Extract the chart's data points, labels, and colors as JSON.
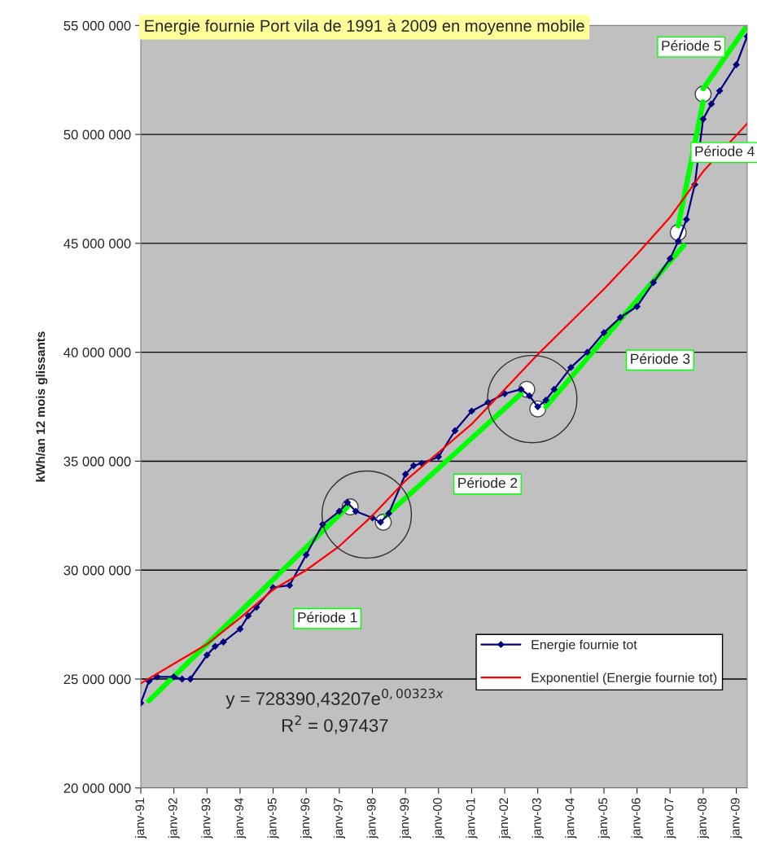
{
  "chart_data": {
    "type": "line",
    "title": "Energie fournie Port vila de 1991 à 2009 en moyenne mobile",
    "ylabel": "kWh/an 12 mois glissants",
    "xlim": [
      "1991-01",
      "2009-05"
    ],
    "ylim": [
      20000000,
      55000000
    ],
    "xticks": [
      {
        "value": "1991-01",
        "label": "janv-91"
      },
      {
        "value": "1992-01",
        "label": "janv-92"
      },
      {
        "value": "1993-01",
        "label": "janv-93"
      },
      {
        "value": "1994-01",
        "label": "janv-94"
      },
      {
        "value": "1995-01",
        "label": "janv-95"
      },
      {
        "value": "1996-01",
        "label": "janv-96"
      },
      {
        "value": "1997-01",
        "label": "janv-97"
      },
      {
        "value": "1998-01",
        "label": "janv-98"
      },
      {
        "value": "1999-01",
        "label": "janv-99"
      },
      {
        "value": "2000-01",
        "label": "janv-00"
      },
      {
        "value": "2001-01",
        "label": "janv-01"
      },
      {
        "value": "2002-01",
        "label": "janv-02"
      },
      {
        "value": "2003-01",
        "label": "janv-03"
      },
      {
        "value": "2004-01",
        "label": "janv-04"
      },
      {
        "value": "2005-01",
        "label": "janv-05"
      },
      {
        "value": "2006-01",
        "label": "janv-06"
      },
      {
        "value": "2007-01",
        "label": "janv-07"
      },
      {
        "value": "2008-01",
        "label": "janv-08"
      },
      {
        "value": "2009-01",
        "label": "janv-09"
      }
    ],
    "yticks": [
      {
        "value": 20000000,
        "label": "20 000 000"
      },
      {
        "value": 25000000,
        "label": "25 000 000"
      },
      {
        "value": 30000000,
        "label": "30 000 000"
      },
      {
        "value": 35000000,
        "label": "35 000 000"
      },
      {
        "value": 40000000,
        "label": "40 000 000"
      },
      {
        "value": 45000000,
        "label": "45 000 000"
      },
      {
        "value": 50000000,
        "label": "50 000 000"
      },
      {
        "value": 55000000,
        "label": "55 000 000"
      }
    ],
    "grid": "y",
    "legend": "bottom right",
    "series": [
      {
        "name": "Energie fournie tot",
        "color": "#000080",
        "marker": "diamond",
        "line_style": "solid",
        "x": [
          "1991-01",
          "1991-04",
          "1991-07",
          "1992-01",
          "1992-04",
          "1992-07",
          "1993-01",
          "1993-04",
          "1993-07",
          "1994-01",
          "1994-04",
          "1994-07",
          "1995-01",
          "1995-07",
          "1996-01",
          "1996-07",
          "1997-01",
          "1997-04",
          "1997-07",
          "1998-01",
          "1998-04",
          "1998-07",
          "1999-01",
          "1999-04",
          "1999-07",
          "2000-01",
          "2000-07",
          "2001-01",
          "2001-07",
          "2002-01",
          "2002-07",
          "2002-10",
          "2003-01",
          "2003-04",
          "2003-07",
          "2004-01",
          "2004-07",
          "2005-01",
          "2005-07",
          "2006-01",
          "2006-07",
          "2007-01",
          "2007-04",
          "2007-07",
          "2007-10",
          "2008-01",
          "2008-04",
          "2008-07",
          "2009-01",
          "2009-05"
        ],
        "values": [
          23900000,
          24900000,
          25100000,
          25100000,
          25000000,
          25000000,
          26100000,
          26500000,
          26700000,
          27300000,
          27900000,
          28300000,
          29200000,
          29300000,
          30700000,
          32100000,
          32700000,
          33100000,
          32700000,
          32400000,
          32200000,
          32600000,
          34400000,
          34800000,
          34900000,
          35200000,
          36400000,
          37300000,
          37700000,
          38100000,
          38300000,
          38000000,
          37500000,
          37800000,
          38300000,
          39300000,
          40000000,
          40900000,
          41600000,
          42100000,
          43200000,
          44300000,
          45100000,
          46100000,
          47700000,
          50700000,
          51400000,
          52000000,
          53200000,
          54500000
        ]
      },
      {
        "name": "Exponentiel (Energie fournie tot)",
        "color": "#ff0000",
        "line_style": "solid",
        "x": [
          "1991-01",
          "1992-01",
          "1993-01",
          "1994-01",
          "1995-01",
          "1996-01",
          "1997-01",
          "1998-01",
          "1999-01",
          "2000-01",
          "2001-01",
          "2002-01",
          "2003-01",
          "2004-01",
          "2005-01",
          "2006-01",
          "2007-01",
          "2008-01",
          "2009-05"
        ],
        "values": [
          24800000,
          25700000,
          26600000,
          27800000,
          29100000,
          30000000,
          31100000,
          32500000,
          34100000,
          35400000,
          36700000,
          38300000,
          39900000,
          41400000,
          42900000,
          44500000,
          46200000,
          48300000,
          50500000
        ]
      },
      {
        "color": "#00ff00",
        "line_style": "solid",
        "x": [
          "1991-04",
          "1997-04"
        ],
        "values": [
          24000000,
          32900000
        ]
      },
      {
        "color": "#00ff00",
        "line_style": "solid",
        "x": [
          "1998-06",
          "2002-07"
        ],
        "values": [
          32500000,
          38100000
        ]
      },
      {
        "color": "#00ff00",
        "line_style": "solid",
        "x": [
          "2003-04",
          "2007-06"
        ],
        "values": [
          37500000,
          44900000
        ]
      },
      {
        "color": "#00ff00",
        "line_style": "solid",
        "x": [
          "2007-04",
          "2008-01"
        ],
        "values": [
          45800000,
          51500000
        ]
      },
      {
        "color": "#00ff00",
        "line_style": "solid",
        "x": [
          "2008-01",
          "2009-05"
        ],
        "values": [
          52100000,
          55000000
        ]
      },
      {
        "type": "scatter",
        "color": "#ffffff",
        "marker": "circle",
        "x": [
          "1997-05",
          "1998-05",
          "2002-09",
          "2003-01",
          "2007-04",
          "2008-01"
        ],
        "values": [
          32900000,
          32200000,
          38300000,
          37400000,
          45500000,
          51850000
        ]
      }
    ],
    "annotations": [
      "Période 1",
      "Période 2",
      "Période 3",
      "Période 4",
      "Période 5",
      "y = 728390,43207e$^{0,00323x}$",
      "R$^{2}$ = 0,97437"
    ]
  }
}
